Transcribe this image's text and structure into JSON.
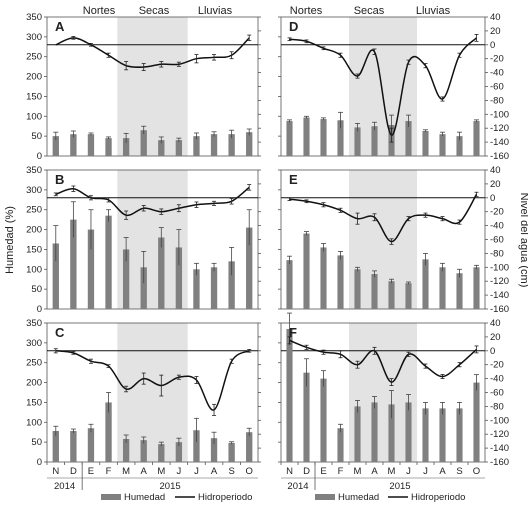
{
  "axis_titles": {
    "left": "Humedad (%)",
    "right": "Nivel del agua (cm)"
  },
  "seasons": [
    "Nortes",
    "Secas",
    "Lluvias"
  ],
  "months": [
    "N",
    "D",
    "E",
    "F",
    "M",
    "A",
    "M",
    "J",
    "J",
    "A",
    "S",
    "O"
  ],
  "years": [
    "2014",
    "2015"
  ],
  "legend": {
    "humedad": "Humedad",
    "hidroperiodo": "Hidroperiodo"
  },
  "colors": {
    "bar": "#808080",
    "line": "#111111",
    "shade": "#e3e3e3"
  },
  "chart_data": [
    {
      "panel": "A",
      "type": "bar+line",
      "left_axis": {
        "ticks": [
          0,
          50,
          100,
          150,
          200,
          250,
          300,
          350
        ],
        "ylim": [
          0,
          350
        ]
      },
      "right_axis": {
        "ticks": [
          40,
          20,
          0,
          -20,
          -40,
          -60,
          -80,
          -100,
          -120,
          -140,
          -160
        ]
      },
      "dry_season_months": [
        "M",
        "A",
        "M",
        "J"
      ],
      "humedad": [
        50,
        55,
        55,
        45,
        45,
        65,
        40,
        40,
        50,
        55,
        55,
        60
      ],
      "humedad_err": [
        10,
        8,
        3,
        3,
        12,
        10,
        8,
        5,
        8,
        6,
        10,
        8
      ],
      "hidroperiodo": [
        0,
        10,
        0,
        -15,
        -30,
        -32,
        -28,
        -28,
        -20,
        -18,
        -15,
        10
      ],
      "hidroperiodo_err": [
        0,
        2,
        2,
        3,
        6,
        5,
        4,
        3,
        6,
        4,
        5,
        4
      ]
    },
    {
      "panel": "B",
      "type": "bar+line",
      "left_axis": {
        "ticks": [
          0,
          50,
          100,
          150,
          200,
          250,
          300,
          350
        ],
        "ylim": [
          0,
          350
        ]
      },
      "right_axis": {
        "ticks": [
          40,
          20,
          0,
          -20,
          -40,
          -60,
          -80,
          -100,
          -120,
          -140,
          -160
        ]
      },
      "dry_season_months": [
        "M",
        "A",
        "M",
        "J"
      ],
      "humedad": [
        165,
        225,
        200,
        235,
        150,
        105,
        180,
        155,
        100,
        105,
        120,
        205
      ],
      "humedad_err": [
        45,
        45,
        50,
        15,
        30,
        40,
        25,
        45,
        15,
        10,
        35,
        45
      ],
      "hidroperiodo": [
        5,
        13,
        0,
        -3,
        -25,
        -15,
        -20,
        -15,
        -10,
        -8,
        -5,
        15
      ],
      "hidroperiodo_err": [
        2,
        4,
        3,
        3,
        6,
        4,
        4,
        5,
        4,
        3,
        4,
        4
      ]
    },
    {
      "panel": "C",
      "type": "bar+line",
      "left_axis": {
        "ticks": [
          0,
          50,
          100,
          150,
          200,
          250,
          300,
          350
        ],
        "ylim": [
          0,
          350
        ]
      },
      "right_axis": {
        "ticks": [
          40,
          20,
          0,
          -20,
          -40,
          -60,
          -80,
          -100,
          -120,
          -140,
          -160
        ]
      },
      "dry_season_months": [
        "M",
        "A",
        "M",
        "J"
      ],
      "humedad": [
        78,
        78,
        85,
        150,
        58,
        55,
        45,
        50,
        80,
        60,
        48,
        75
      ],
      "humedad_err": [
        12,
        5,
        10,
        25,
        10,
        8,
        5,
        10,
        30,
        15,
        3,
        10
      ],
      "hidroperiodo": [
        0,
        -3,
        -15,
        -22,
        -55,
        -40,
        -50,
        -38,
        -42,
        -85,
        -15,
        0
      ],
      "hidroperiodo_err": [
        3,
        2,
        3,
        2,
        4,
        8,
        15,
        3,
        5,
        8,
        3,
        2
      ]
    },
    {
      "panel": "D",
      "type": "bar+line",
      "left_axis": {
        "ticks": [
          0,
          50,
          100,
          150,
          200,
          250,
          300,
          350
        ],
        "ylim": [
          0,
          350
        ]
      },
      "right_axis": {
        "ticks": [
          40,
          20,
          0,
          -20,
          -40,
          -60,
          -80,
          -100,
          -120,
          -140,
          -160
        ]
      },
      "dry_season_months": [
        "M",
        "A",
        "M",
        "J"
      ],
      "humedad": [
        88,
        97,
        93,
        90,
        72,
        75,
        78,
        88,
        63,
        55,
        50,
        88
      ],
      "humedad_err": [
        3,
        3,
        3,
        20,
        10,
        10,
        25,
        15,
        3,
        5,
        10,
        3
      ],
      "hidroperiodo": [
        8,
        5,
        -5,
        -15,
        -45,
        -10,
        -130,
        -25,
        -30,
        -78,
        -15,
        10
      ],
      "hidroperiodo_err": [
        2,
        2,
        2,
        3,
        3,
        4,
        10,
        3,
        3,
        3,
        3,
        5
      ]
    },
    {
      "panel": "E",
      "type": "bar+line",
      "left_axis": {
        "ticks": [
          0,
          50,
          100,
          150,
          200,
          250,
          300,
          350
        ],
        "ylim": [
          0,
          350
        ]
      },
      "right_axis": {
        "ticks": [
          40,
          20,
          0,
          -20,
          -40,
          -60,
          -80,
          -100,
          -120,
          -140,
          -160
        ]
      },
      "dry_season_months": [
        "M",
        "A",
        "M",
        "J"
      ],
      "humedad": [
        123,
        190,
        155,
        135,
        100,
        88,
        70,
        65,
        125,
        105,
        90,
        105
      ],
      "humedad_err": [
        10,
        5,
        10,
        10,
        5,
        8,
        5,
        3,
        15,
        10,
        10,
        5
      ],
      "hidroperiodo": [
        -2,
        -5,
        -10,
        -18,
        -30,
        -28,
        -63,
        -30,
        -25,
        -30,
        -35,
        5
      ],
      "hidroperiodo_err": [
        2,
        2,
        3,
        3,
        8,
        5,
        4,
        3,
        3,
        3,
        3,
        3
      ]
    },
    {
      "panel": "F",
      "type": "bar+line",
      "left_axis": {
        "ticks": [
          0,
          50,
          100,
          150,
          200,
          250,
          300,
          350
        ],
        "ylim": [
          0,
          350
        ]
      },
      "right_axis": {
        "ticks": [
          40,
          20,
          0,
          -20,
          -40,
          -60,
          -80,
          -100,
          -120,
          -140,
          -160
        ]
      },
      "dry_season_months": [
        "M",
        "A",
        "M",
        "J"
      ],
      "humedad": [
        335,
        225,
        210,
        85,
        140,
        150,
        145,
        150,
        135,
        135,
        135,
        200
      ],
      "humedad_err": [
        40,
        35,
        20,
        10,
        15,
        15,
        35,
        20,
        15,
        15,
        15,
        20
      ],
      "hidroperiodo": [
        15,
        5,
        -2,
        -5,
        -20,
        0,
        -45,
        -5,
        -22,
        -37,
        -20,
        2
      ],
      "hidroperiodo_err": [
        5,
        3,
        3,
        5,
        5,
        5,
        5,
        3,
        3,
        3,
        3,
        5
      ]
    }
  ]
}
